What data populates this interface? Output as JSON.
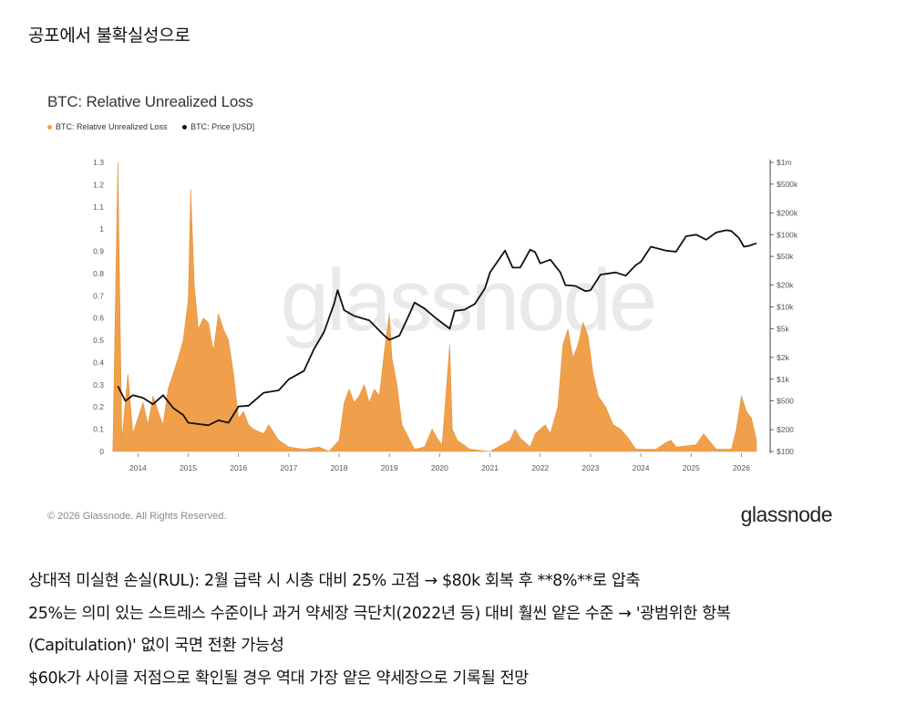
{
  "heading": "공포에서 불확실성으로",
  "chart": {
    "title": "BTC: Relative Unrealized Loss",
    "legend": [
      {
        "label": "BTC: Relative Unrealized Loss",
        "color": "#f0a04b"
      },
      {
        "label": "BTC: Price [USD]",
        "color": "#111111"
      }
    ],
    "copyright": "© 2026 Glassnode. All Rights Reserved.",
    "brand": "glassnode",
    "watermark": "glassnode"
  },
  "chart_data": {
    "type": "area",
    "title": "BTC: Relative Unrealized Loss",
    "x_ticks": [
      "2014",
      "2015",
      "2016",
      "2017",
      "2018",
      "2019",
      "2020",
      "2021",
      "2022",
      "2023",
      "2024",
      "2025",
      "2026"
    ],
    "y_left_ticks": [
      "0",
      "0.1",
      "0.2",
      "0.3",
      "0.4",
      "0.5",
      "0.6",
      "0.7",
      "0.8",
      "0.9",
      "1",
      "1.1",
      "1.2",
      "1.3"
    ],
    "y_left_range": [
      0,
      1.3
    ],
    "y_right_ticks": [
      "$100",
      "$200",
      "$500",
      "$1k",
      "$2k",
      "$5k",
      "$10k",
      "$20k",
      "$50k",
      "$100k",
      "$200k",
      "$500k",
      "$1m"
    ],
    "y_right_scale": "log",
    "y_right_range": [
      100,
      1000000
    ],
    "legend_position": "top-left",
    "grid": false,
    "series": [
      {
        "name": "BTC: Relative Unrealized Loss",
        "color": "#f0a04b",
        "points": [
          [
            2013.5,
            0.0
          ],
          [
            2013.6,
            1.3
          ],
          [
            2013.68,
            0.05
          ],
          [
            2013.8,
            0.35
          ],
          [
            2013.9,
            0.08
          ],
          [
            2014.0,
            0.15
          ],
          [
            2014.1,
            0.22
          ],
          [
            2014.2,
            0.12
          ],
          [
            2014.3,
            0.25
          ],
          [
            2014.4,
            0.18
          ],
          [
            2014.5,
            0.12
          ],
          [
            2014.6,
            0.28
          ],
          [
            2014.7,
            0.35
          ],
          [
            2014.8,
            0.42
          ],
          [
            2014.9,
            0.5
          ],
          [
            2015.0,
            0.68
          ],
          [
            2015.05,
            1.18
          ],
          [
            2015.12,
            0.75
          ],
          [
            2015.2,
            0.55
          ],
          [
            2015.3,
            0.6
          ],
          [
            2015.4,
            0.58
          ],
          [
            2015.5,
            0.45
          ],
          [
            2015.6,
            0.62
          ],
          [
            2015.7,
            0.55
          ],
          [
            2015.8,
            0.5
          ],
          [
            2015.9,
            0.35
          ],
          [
            2016.0,
            0.15
          ],
          [
            2016.1,
            0.18
          ],
          [
            2016.2,
            0.12
          ],
          [
            2016.3,
            0.1
          ],
          [
            2016.5,
            0.08
          ],
          [
            2016.6,
            0.12
          ],
          [
            2016.8,
            0.05
          ],
          [
            2017.0,
            0.02
          ],
          [
            2017.3,
            0.01
          ],
          [
            2017.6,
            0.02
          ],
          [
            2017.8,
            0.0
          ],
          [
            2018.0,
            0.05
          ],
          [
            2018.1,
            0.22
          ],
          [
            2018.2,
            0.28
          ],
          [
            2018.3,
            0.22
          ],
          [
            2018.4,
            0.25
          ],
          [
            2018.5,
            0.3
          ],
          [
            2018.6,
            0.22
          ],
          [
            2018.7,
            0.28
          ],
          [
            2018.8,
            0.25
          ],
          [
            2018.9,
            0.45
          ],
          [
            2019.0,
            0.62
          ],
          [
            2019.05,
            0.42
          ],
          [
            2019.15,
            0.3
          ],
          [
            2019.25,
            0.12
          ],
          [
            2019.5,
            0.01
          ],
          [
            2019.7,
            0.02
          ],
          [
            2019.85,
            0.1
          ],
          [
            2019.95,
            0.06
          ],
          [
            2020.05,
            0.03
          ],
          [
            2020.2,
            0.48
          ],
          [
            2020.25,
            0.1
          ],
          [
            2020.35,
            0.05
          ],
          [
            2020.6,
            0.01
          ],
          [
            2021.0,
            0.0
          ],
          [
            2021.4,
            0.05
          ],
          [
            2021.5,
            0.1
          ],
          [
            2021.6,
            0.06
          ],
          [
            2021.8,
            0.02
          ],
          [
            2021.9,
            0.08
          ],
          [
            2022.0,
            0.1
          ],
          [
            2022.1,
            0.12
          ],
          [
            2022.2,
            0.08
          ],
          [
            2022.35,
            0.2
          ],
          [
            2022.45,
            0.48
          ],
          [
            2022.55,
            0.55
          ],
          [
            2022.65,
            0.42
          ],
          [
            2022.75,
            0.48
          ],
          [
            2022.85,
            0.58
          ],
          [
            2022.95,
            0.52
          ],
          [
            2023.05,
            0.35
          ],
          [
            2023.15,
            0.25
          ],
          [
            2023.3,
            0.2
          ],
          [
            2023.45,
            0.12
          ],
          [
            2023.6,
            0.1
          ],
          [
            2023.75,
            0.06
          ],
          [
            2023.9,
            0.01
          ],
          [
            2024.3,
            0.01
          ],
          [
            2024.5,
            0.04
          ],
          [
            2024.6,
            0.05
          ],
          [
            2024.7,
            0.02
          ],
          [
            2025.1,
            0.03
          ],
          [
            2025.25,
            0.08
          ],
          [
            2025.35,
            0.05
          ],
          [
            2025.5,
            0.01
          ],
          [
            2025.8,
            0.01
          ],
          [
            2025.9,
            0.1
          ],
          [
            2026.0,
            0.25
          ],
          [
            2026.1,
            0.18
          ],
          [
            2026.2,
            0.15
          ],
          [
            2026.3,
            0.05
          ]
        ]
      },
      {
        "name": "BTC: Price [USD]",
        "color": "#111111",
        "points": [
          [
            2013.6,
            800
          ],
          [
            2013.75,
            500
          ],
          [
            2013.9,
            600
          ],
          [
            2014.1,
            550
          ],
          [
            2014.3,
            450
          ],
          [
            2014.5,
            600
          ],
          [
            2014.7,
            400
          ],
          [
            2014.9,
            320
          ],
          [
            2015.0,
            250
          ],
          [
            2015.2,
            240
          ],
          [
            2015.4,
            230
          ],
          [
            2015.6,
            270
          ],
          [
            2015.8,
            250
          ],
          [
            2016.0,
            420
          ],
          [
            2016.2,
            430
          ],
          [
            2016.5,
            650
          ],
          [
            2016.8,
            700
          ],
          [
            2017.0,
            1000
          ],
          [
            2017.3,
            1300
          ],
          [
            2017.5,
            2600
          ],
          [
            2017.7,
            4500
          ],
          [
            2017.9,
            11000
          ],
          [
            2017.97,
            17000
          ],
          [
            2018.1,
            9000
          ],
          [
            2018.3,
            7500
          ],
          [
            2018.6,
            6500
          ],
          [
            2018.9,
            4000
          ],
          [
            2019.0,
            3500
          ],
          [
            2019.2,
            4000
          ],
          [
            2019.4,
            8000
          ],
          [
            2019.5,
            11500
          ],
          [
            2019.7,
            9500
          ],
          [
            2019.9,
            7200
          ],
          [
            2020.2,
            5000
          ],
          [
            2020.3,
            8800
          ],
          [
            2020.5,
            9200
          ],
          [
            2020.7,
            11000
          ],
          [
            2020.9,
            18000
          ],
          [
            2021.0,
            30000
          ],
          [
            2021.3,
            60000
          ],
          [
            2021.45,
            35000
          ],
          [
            2021.6,
            35000
          ],
          [
            2021.8,
            62000
          ],
          [
            2021.9,
            57000
          ],
          [
            2022.0,
            40000
          ],
          [
            2022.2,
            45000
          ],
          [
            2022.4,
            30000
          ],
          [
            2022.5,
            20000
          ],
          [
            2022.7,
            19500
          ],
          [
            2022.9,
            16500
          ],
          [
            2023.0,
            17000
          ],
          [
            2023.2,
            28000
          ],
          [
            2023.5,
            30000
          ],
          [
            2023.7,
            27000
          ],
          [
            2023.9,
            38000
          ],
          [
            2024.0,
            42000
          ],
          [
            2024.2,
            68000
          ],
          [
            2024.5,
            60000
          ],
          [
            2024.7,
            58000
          ],
          [
            2024.9,
            95000
          ],
          [
            2025.1,
            100000
          ],
          [
            2025.3,
            85000
          ],
          [
            2025.5,
            107000
          ],
          [
            2025.7,
            115000
          ],
          [
            2025.8,
            112000
          ],
          [
            2025.95,
            90000
          ],
          [
            2026.05,
            68000
          ],
          [
            2026.15,
            70000
          ],
          [
            2026.3,
            76000
          ]
        ]
      }
    ]
  },
  "bullets": [
    "상대적 미실현 손실(RUL): 2월 급락 시 시총 대비 25% 고점 → $80k 회복 후 **8%**로 압축",
    "25%는 의미 있는 스트레스 수준이나 과거 약세장 극단치(2022년 등) 대비 훨씬 얕은 수준 → '광범위한 항복",
    "(Capitulation)' 없이 국면 전환 가능성",
    "$60k가 사이클 저점으로 확인될 경우 역대 가장 얕은 약세장으로 기록될 전망"
  ]
}
